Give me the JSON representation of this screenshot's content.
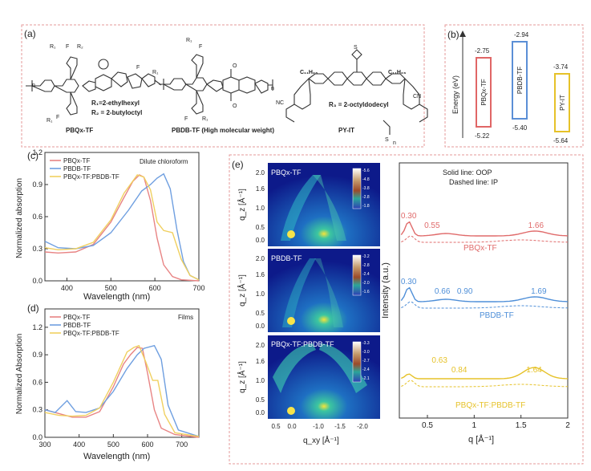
{
  "panel_labels": {
    "a": "(a)",
    "b": "(b)",
    "c": "(c)",
    "d": "(d)",
    "e": "(e)"
  },
  "molecules": {
    "pbqx": {
      "name": "PBQx-TF",
      "r1": "R₁=2-ethylhexyl",
      "r2": "R₂ = 2-butyloctyl"
    },
    "pbdb": {
      "name": "PBDB-TF (High molecular weight)"
    },
    "pyit": {
      "name": "PY-IT",
      "r3": "R₃ = 2-octyldodecyl",
      "side": "C₁₁H₂₃"
    }
  },
  "energy": {
    "ylabel": "Energy (eV)",
    "levels": [
      {
        "name": "PBQx-TF",
        "lumo": "-2.75",
        "homo": "-5.22",
        "color": "#e06666"
      },
      {
        "name": "PBDB-TF",
        "lumo": "-2.94",
        "homo": "-5.40",
        "color": "#5b8fd6"
      },
      {
        "name": "PY-IT",
        "lumo": "-3.74",
        "homo": "-5.64",
        "color": "#e6c229"
      }
    ]
  },
  "chart_data": [
    {
      "type": "line",
      "panel": "c",
      "note": "Dilute chloroform",
      "xlabel": "Wavelength (nm)",
      "ylabel": "Normalized absorption",
      "xlim": [
        350,
        700
      ],
      "ylim": [
        0,
        1.2
      ],
      "xticks": [
        "400",
        "500",
        "600",
        "700"
      ],
      "yticks": [
        "0.0",
        "0.3",
        "0.6",
        "0.9",
        "1.2"
      ],
      "series": [
        {
          "name": "PBQx-TF",
          "color": "#e88484",
          "x": [
            350,
            380,
            420,
            460,
            500,
            530,
            550,
            565,
            575,
            590,
            605,
            620,
            640,
            660,
            700
          ],
          "y": [
            0.27,
            0.26,
            0.27,
            0.34,
            0.55,
            0.78,
            0.93,
            0.99,
            0.97,
            0.75,
            0.4,
            0.15,
            0.04,
            0.01,
            0
          ]
        },
        {
          "name": "PBDB-TF",
          "color": "#6f9fe0",
          "x": [
            350,
            380,
            420,
            460,
            500,
            540,
            570,
            590,
            605,
            620,
            635,
            650,
            665,
            680,
            700
          ],
          "y": [
            0.37,
            0.31,
            0.3,
            0.33,
            0.45,
            0.66,
            0.84,
            0.9,
            0.96,
            1.0,
            0.86,
            0.48,
            0.18,
            0.05,
            0.01
          ]
        },
        {
          "name": "PBQx-TF:PBDB-TF",
          "color": "#f0d060",
          "x": [
            350,
            380,
            420,
            460,
            500,
            530,
            560,
            575,
            590,
            605,
            620,
            640,
            660,
            680,
            700
          ],
          "y": [
            0.31,
            0.29,
            0.3,
            0.36,
            0.57,
            0.82,
            0.99,
            0.97,
            0.85,
            0.55,
            0.47,
            0.45,
            0.2,
            0.05,
            0.01
          ]
        }
      ]
    },
    {
      "type": "line",
      "panel": "d",
      "note": "Films",
      "xlabel": "Wavelength (nm)",
      "ylabel": "Normalized Absorption",
      "xlim": [
        300,
        750
      ],
      "ylim": [
        0,
        1.4
      ],
      "xticks": [
        "300",
        "400",
        "500",
        "600",
        "700"
      ],
      "yticks": [
        "0.0",
        "0.3",
        "0.6",
        "0.9",
        "1.2"
      ],
      "series": [
        {
          "name": "PBQx-TF",
          "color": "#e88484",
          "x": [
            300,
            340,
            380,
            420,
            460,
            500,
            530,
            550,
            570,
            585,
            600,
            620,
            640,
            680,
            750
          ],
          "y": [
            0.3,
            0.26,
            0.22,
            0.22,
            0.28,
            0.55,
            0.8,
            0.9,
            0.98,
            0.97,
            0.7,
            0.3,
            0.1,
            0.03,
            0
          ]
        },
        {
          "name": "PBDB-TF",
          "color": "#6f9fe0",
          "x": [
            300,
            330,
            365,
            390,
            420,
            460,
            500,
            540,
            570,
            590,
            620,
            640,
            660,
            690,
            750
          ],
          "y": [
            0.3,
            0.27,
            0.4,
            0.28,
            0.27,
            0.32,
            0.5,
            0.75,
            0.9,
            0.97,
            1.0,
            0.85,
            0.35,
            0.08,
            0.01
          ]
        },
        {
          "name": "PBQx-TF:PBDB-TF",
          "color": "#f0d060",
          "x": [
            300,
            340,
            380,
            420,
            460,
            500,
            540,
            560,
            575,
            595,
            615,
            630,
            650,
            680,
            750
          ],
          "y": [
            0.27,
            0.24,
            0.23,
            0.24,
            0.32,
            0.6,
            0.93,
            0.98,
            1.0,
            0.82,
            0.62,
            0.62,
            0.25,
            0.05,
            0.01
          ]
        }
      ]
    },
    {
      "type": "line",
      "panel": "e-profiles",
      "xlabel": "q [Å⁻¹]",
      "ylabel": "Intensity (a.u.)",
      "xlim": [
        0.2,
        2
      ],
      "xticks": [
        "0.5",
        "1",
        "1.5",
        "2"
      ],
      "legend_text": [
        "Solid line: OOP",
        "Dashed line: IP"
      ],
      "series": [
        {
          "name": "PBQx-TF",
          "color": "#e06b6b",
          "peaks": [
            "0.30",
            "0.55",
            "1.66"
          ]
        },
        {
          "name": "PBDB-TF",
          "color": "#4f8fd8",
          "peaks": [
            "0.30",
            "0.66",
            "0.90",
            "1.69"
          ]
        },
        {
          "name": "PBQx-TF:PBDB-TF",
          "color": "#e6c229",
          "peaks": [
            "0.63",
            "0.84",
            "1.64"
          ]
        }
      ]
    }
  ],
  "giwaxs": {
    "ylabel": "q_z [Å⁻¹]",
    "xlabel": "q_xy [Å⁻¹]",
    "yticks": [
      "2.0",
      "1.6",
      "1.0",
      "0.5",
      "0.0"
    ],
    "xticks": [
      "0.5",
      "0.0",
      "-1.0",
      "-1.5",
      "-2.0"
    ],
    "maps": [
      {
        "name": "PBQx-TF",
        "scale": [
          "-5.6",
          "-4.8",
          "-3.8",
          "-2.8",
          "-1.8"
        ]
      },
      {
        "name": "PBDB-TF",
        "scale": [
          "-3.2",
          "-2.8",
          "-2.4",
          "-2.0",
          "-1.6"
        ]
      },
      {
        "name": "PBQx-TF:PBDB-TF",
        "scale": [
          "-3.3",
          "-3.0",
          "-2.7",
          "-2.4",
          "-2.1"
        ]
      }
    ]
  }
}
